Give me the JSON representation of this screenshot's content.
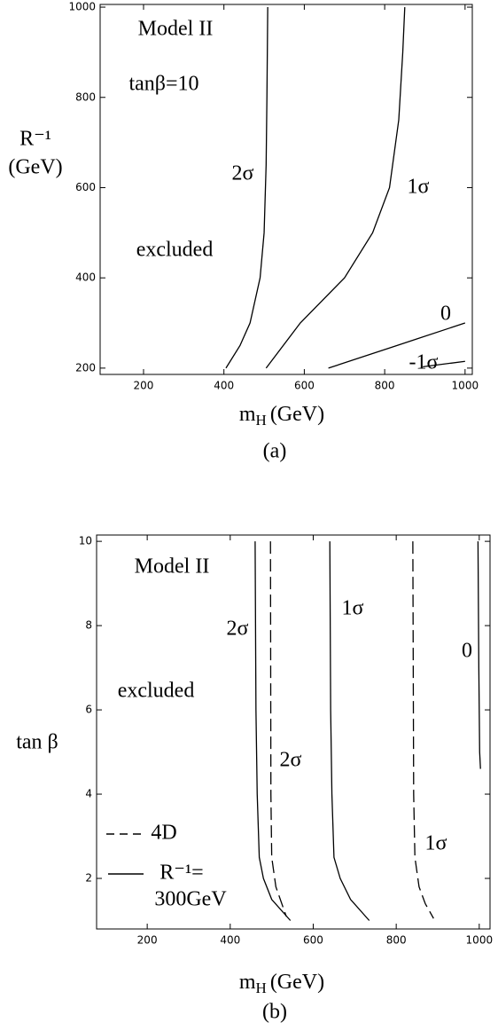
{
  "chart_data": [
    {
      "type": "line",
      "ylabel": [
        "R⁻¹",
        "(GeV)"
      ],
      "xlabel": [
        "m",
        "H",
        "(GeV)"
      ],
      "caption": "(a)",
      "annotations": [
        "Model II",
        "tanβ=10",
        "excluded"
      ],
      "xlim": [
        92,
        1018
      ],
      "ylim": [
        186,
        1006
      ],
      "xticks": [
        200,
        400,
        600,
        800,
        1000
      ],
      "yticks": [
        200,
        400,
        600,
        800,
        1000
      ],
      "series": [
        {
          "name": "2σ",
          "color": "#000000",
          "x": [
            405,
            440,
            465,
            490,
            500,
            505,
            507,
            509
          ],
          "values": [
            200,
            250,
            300,
            400,
            500,
            650,
            800,
            1000
          ]
        },
        {
          "name": "1σ",
          "color": "#000000",
          "x": [
            505,
            590,
            700,
            770,
            812,
            835,
            845,
            850
          ],
          "values": [
            200,
            300,
            400,
            500,
            600,
            750,
            900,
            1000
          ]
        },
        {
          "name": "0",
          "color": "#000000",
          "x": [
            660,
            830,
            1000
          ],
          "values": [
            200,
            250,
            300
          ]
        },
        {
          "name": "-1σ",
          "color": "#000000",
          "x": [
            895,
            1000
          ],
          "values": [
            203,
            215
          ]
        }
      ]
    },
    {
      "type": "line",
      "ylabel": [
        "tan β"
      ],
      "xlabel": [
        "m",
        "H",
        "(GeV)"
      ],
      "caption": "(b)",
      "annotations": [
        "Model II",
        "excluded"
      ],
      "legend": [
        {
          "label": [
            "4D"
          ],
          "dash": true
        },
        {
          "label": [
            "R⁻¹=",
            "300GeV"
          ],
          "dash": false
        }
      ],
      "xlim": [
        78,
        1026
      ],
      "ylim": [
        0.8,
        10.15
      ],
      "xticks": [
        200,
        400,
        600,
        800,
        1000
      ],
      "yticks": [
        2,
        4,
        6,
        8,
        10
      ],
      "series": [
        {
          "name": "2σ",
          "color": "#000000",
          "dash": false,
          "x": [
            460,
            462,
            465,
            470,
            480,
            500,
            545
          ],
          "values": [
            10,
            6,
            4,
            2.5,
            2,
            1.5,
            1
          ]
        },
        {
          "name": "2σ",
          "color": "#000000",
          "dash": true,
          "x": [
            497,
            498,
            500,
            510,
            535
          ],
          "values": [
            10,
            4,
            2.5,
            1.8,
            1.1
          ]
        },
        {
          "name": "1σ",
          "color": "#000000",
          "dash": false,
          "x": [
            640,
            642,
            645,
            650,
            665,
            690,
            735
          ],
          "values": [
            10,
            6,
            4,
            2.5,
            2,
            1.5,
            1
          ]
        },
        {
          "name": "1σ",
          "color": "#000000",
          "dash": true,
          "x": [
            840,
            842,
            845,
            855,
            870,
            890
          ],
          "values": [
            10,
            4,
            2.5,
            1.8,
            1.4,
            1.05
          ]
        },
        {
          "name": "0",
          "color": "#000000",
          "dash": false,
          "x": [
            997,
            999,
            1001,
            1003
          ],
          "values": [
            10,
            7,
            5,
            4.6
          ]
        }
      ]
    }
  ]
}
